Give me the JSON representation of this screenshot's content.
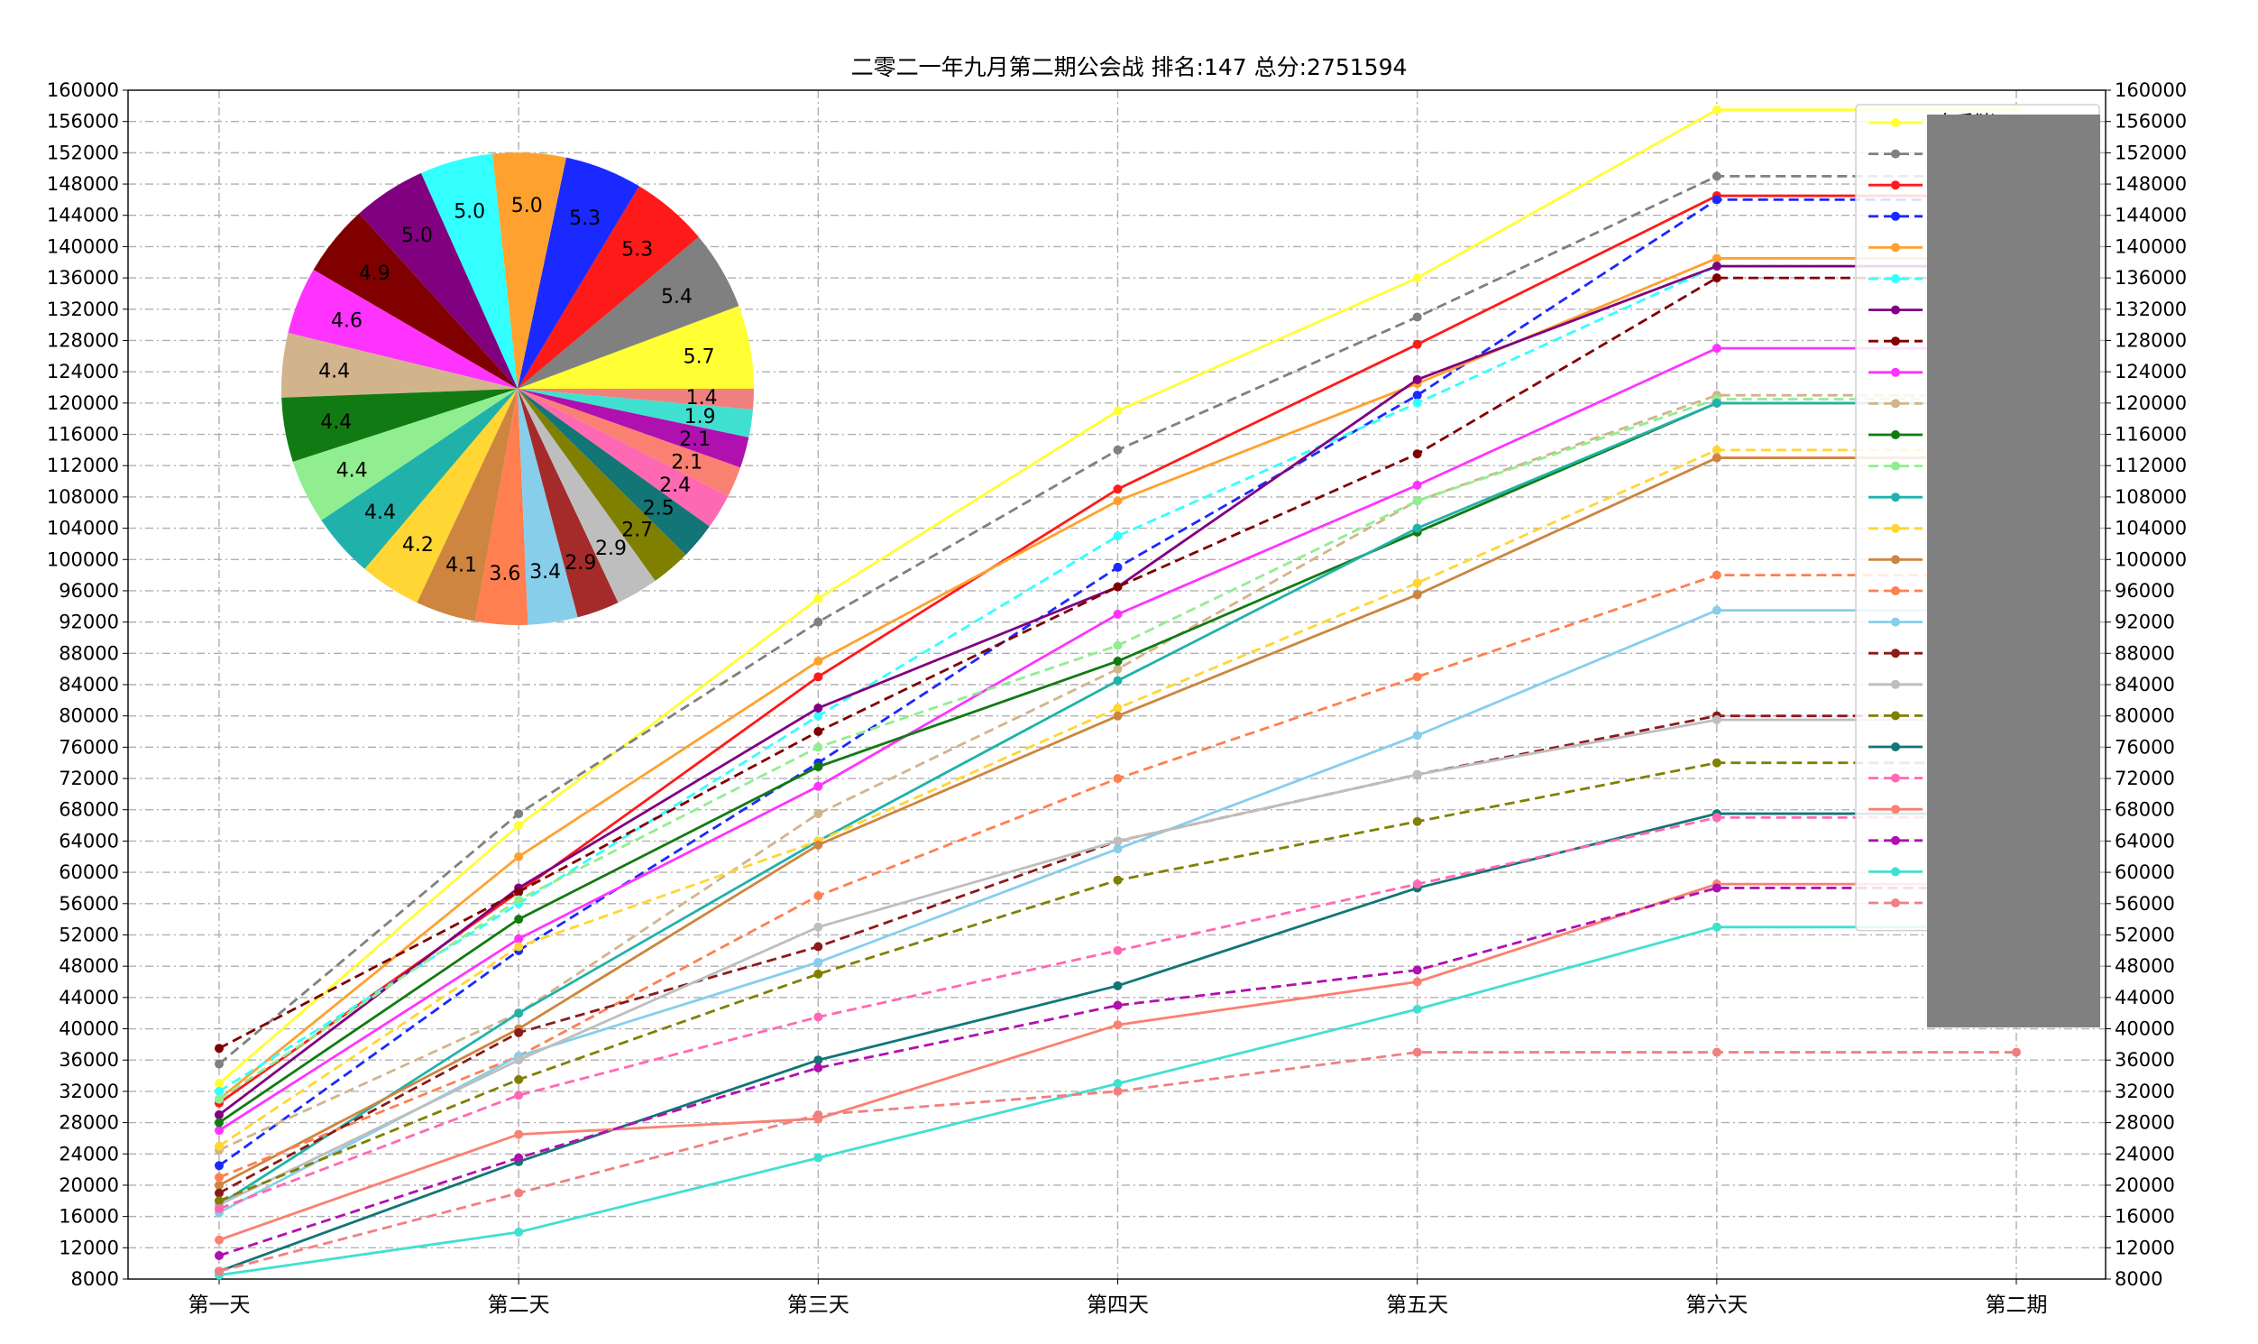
{
  "chart_data": [
    {
      "type": "line",
      "title": "二零二一年九月第二期公会战 排名:147 总分:2751594",
      "categories": [
        "第一天",
        "第二天",
        "第三天",
        "第四天",
        "第五天",
        "第六天",
        "第二期"
      ],
      "ylim": [
        8000,
        160000
      ],
      "ytick_step": 4000,
      "grid": true,
      "legend": "top-right",
      "series": [
        {
          "name": "大香猪",
          "color": "#ffff33",
          "dash": false,
          "values": [
            33000,
            66000,
            95000,
            119000,
            136000,
            157500,
            157500
          ]
        },
        {
          "color": "#808080",
          "dash": true,
          "values": [
            35500,
            67500,
            92000,
            114000,
            131000,
            149000,
            149000
          ]
        },
        {
          "color": "#ff1a1a",
          "dash": false,
          "values": [
            30500,
            57500,
            85000,
            109000,
            127500,
            146500,
            146500
          ]
        },
        {
          "color": "#1a29ff",
          "dash": true,
          "values": [
            22500,
            50000,
            74000,
            99000,
            121000,
            146000,
            146000
          ]
        },
        {
          "color": "#ffa12e",
          "dash": false,
          "values": [
            31000,
            62000,
            87000,
            107500,
            122500,
            138500,
            138500
          ]
        },
        {
          "color": "#33ffff",
          "dash": true,
          "values": [
            32000,
            56000,
            80000,
            103000,
            120000,
            137500,
            137500
          ]
        },
        {
          "color": "#800080",
          "dash": false,
          "values": [
            29000,
            58000,
            81000,
            96500,
            123000,
            137500,
            137500
          ]
        },
        {
          "color": "#800000",
          "dash": true,
          "values": [
            37500,
            57500,
            78000,
            96500,
            113500,
            136000,
            136000
          ]
        },
        {
          "color": "#ff33ff",
          "dash": false,
          "values": [
            27000,
            51500,
            71000,
            93000,
            109500,
            127000,
            127000
          ]
        },
        {
          "color": "#d2b48c",
          "dash": true,
          "values": [
            24500,
            42000,
            67500,
            86000,
            107500,
            121000,
            121000
          ]
        },
        {
          "color": "#127a12",
          "dash": false,
          "values": [
            28000,
            54000,
            73500,
            87000,
            103500,
            120000,
            120000
          ]
        },
        {
          "color": "#90ee90",
          "dash": true,
          "values": [
            31000,
            56500,
            76000,
            89000,
            107500,
            120500,
            120500
          ]
        },
        {
          "color": "#20b2aa",
          "dash": false,
          "values": [
            17500,
            42000,
            64000,
            84500,
            104000,
            120000,
            120000
          ]
        },
        {
          "color": "#ffd633",
          "dash": true,
          "values": [
            25000,
            50500,
            64000,
            81000,
            97000,
            114000,
            114000
          ]
        },
        {
          "color": "#cd853f",
          "dash": false,
          "values": [
            20000,
            40000,
            63500,
            80000,
            95500,
            113000,
            113000
          ]
        },
        {
          "color": "#ff7f50",
          "dash": true,
          "values": [
            21000,
            36500,
            57000,
            72000,
            85000,
            98000,
            98000
          ]
        },
        {
          "color": "#87ceeb",
          "dash": false,
          "values": [
            16500,
            36500,
            48500,
            63000,
            77500,
            93500,
            93500
          ]
        },
        {
          "color": "#8b1a1a",
          "dash": true,
          "values": [
            19000,
            39500,
            50500,
            64000,
            72500,
            80000,
            80000
          ]
        },
        {
          "color": "#bebebe",
          "dash": false,
          "values": [
            17500,
            36000,
            53000,
            64000,
            72500,
            79500,
            79500
          ]
        },
        {
          "color": "#808000",
          "dash": true,
          "values": [
            18000,
            33500,
            47000,
            59000,
            66500,
            74000,
            74000
          ]
        },
        {
          "color": "#137575",
          "dash": false,
          "values": [
            9000,
            23000,
            36000,
            45500,
            58000,
            67500,
            67500
          ]
        },
        {
          "color": "#ff69b4",
          "dash": true,
          "values": [
            17000,
            31500,
            41500,
            50000,
            58500,
            67000,
            67000
          ]
        },
        {
          "color": "#fa8072",
          "dash": false,
          "values": [
            13000,
            26500,
            28500,
            40500,
            46000,
            58500,
            58500
          ]
        },
        {
          "color": "#b010b0",
          "dash": true,
          "values": [
            11000,
            23500,
            35000,
            43000,
            47500,
            58000,
            58000
          ]
        },
        {
          "color": "#40e0d0",
          "dash": false,
          "values": [
            8500,
            14000,
            23500,
            33000,
            42500,
            53000,
            53000
          ]
        },
        {
          "color": "#f08080",
          "dash": true,
          "values": [
            9000,
            19000,
            29000,
            32000,
            37000,
            37000,
            37000
          ]
        }
      ]
    },
    {
      "type": "pie",
      "values": [
        5.7,
        5.4,
        5.3,
        5.3,
        5.0,
        5.0,
        5.0,
        4.9,
        4.6,
        4.4,
        4.4,
        4.4,
        4.4,
        4.2,
        4.1,
        3.6,
        3.4,
        2.9,
        2.9,
        2.7,
        2.5,
        2.4,
        2.1,
        2.1,
        1.9,
        1.4
      ],
      "colors": [
        "#ffff33",
        "#808080",
        "#ff1a1a",
        "#1a29ff",
        "#ffa12e",
        "#33ffff",
        "#800080",
        "#800000",
        "#ff33ff",
        "#d2b48c",
        "#127a12",
        "#90ee90",
        "#20b2aa",
        "#ffd633",
        "#cd853f",
        "#ff7f50",
        "#87ceeb",
        "#a52a2a",
        "#bebebe",
        "#808000",
        "#137575",
        "#ff69b4",
        "#fa8072",
        "#b010b0",
        "#40e0d0",
        "#f08080"
      ]
    }
  ]
}
